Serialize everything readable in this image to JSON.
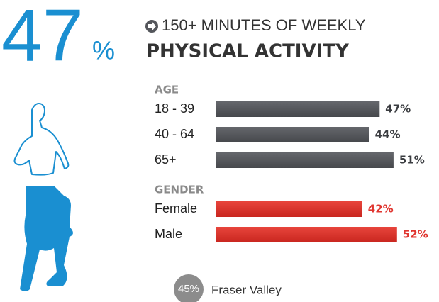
{
  "headline": {
    "number": "47",
    "unit": "%"
  },
  "title": {
    "line1": "150+ MINUTES OF WEEKLY",
    "line2": "PHYSICAL ACTIVITY"
  },
  "chart_data": [
    {
      "type": "bar",
      "orientation": "horizontal",
      "title": "AGE",
      "color": "#54565b",
      "label_color": "#3a3c40",
      "categories": [
        "18 - 39",
        "40 - 64",
        "65+"
      ],
      "values": [
        47,
        44,
        51
      ],
      "value_labels": [
        "47%",
        "44%",
        "51%"
      ],
      "xlim": [
        0,
        100
      ]
    },
    {
      "type": "bar",
      "orientation": "horizontal",
      "title": "GENDER",
      "color": "#d9322e",
      "label_color": "#e0352f",
      "categories": [
        "Female",
        "Male"
      ],
      "values": [
        42,
        52
      ],
      "value_labels": [
        "42%",
        "52%"
      ],
      "xlim": [
        0,
        100
      ]
    }
  ],
  "comparison": {
    "value_label": "45%",
    "label": "Fraser Valley"
  }
}
